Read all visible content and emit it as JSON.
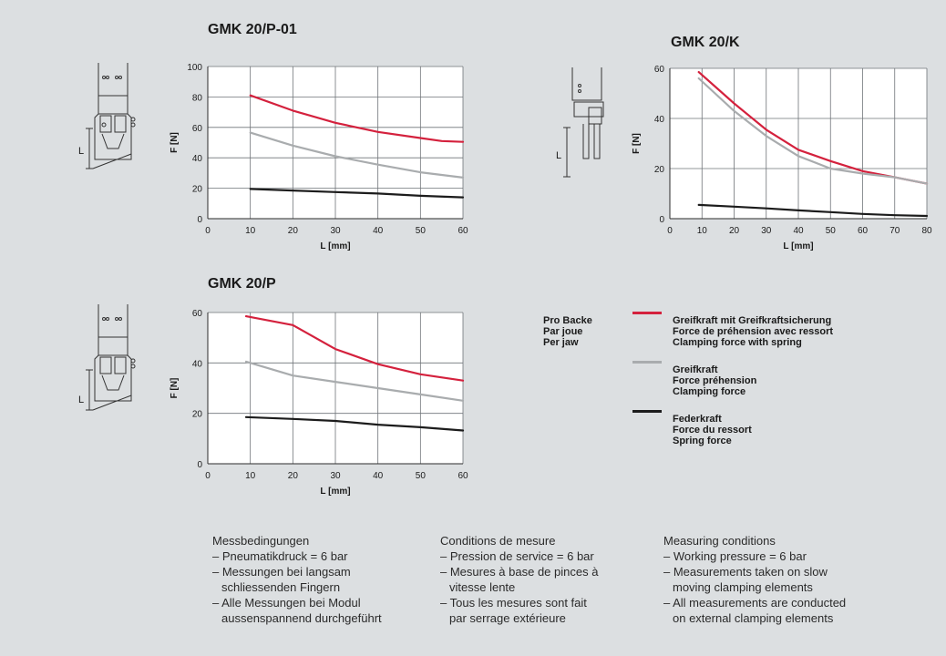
{
  "chart_data": [
    {
      "type": "line",
      "title": "GMK 20/P-01",
      "xlabel": "L [mm]",
      "ylabel": "F [N]",
      "xlim": [
        0,
        60
      ],
      "ylim": [
        0,
        100
      ],
      "xticks": [
        0,
        10,
        20,
        30,
        40,
        50,
        60
      ],
      "yticks": [
        0,
        20,
        40,
        60,
        80,
        100
      ],
      "grid": true,
      "series": [
        {
          "key": "red",
          "color": "#d4213d",
          "x": [
            10,
            20,
            30,
            40,
            50,
            55,
            60
          ],
          "values": [
            81,
            71,
            63,
            57,
            53,
            51,
            50.5
          ]
        },
        {
          "key": "gray",
          "color": "#a9acae",
          "x": [
            10,
            20,
            30,
            40,
            50,
            60
          ],
          "values": [
            56.5,
            48,
            41,
            35.5,
            30.5,
            27
          ]
        },
        {
          "key": "black",
          "color": "#1c1c1c",
          "x": [
            10,
            20,
            30,
            40,
            50,
            60
          ],
          "values": [
            19.5,
            18.5,
            17.5,
            16.5,
            15,
            14
          ]
        }
      ]
    },
    {
      "type": "line",
      "title": "GMK 20/K",
      "xlabel": "L [mm]",
      "ylabel": "F [N]",
      "xlim": [
        0,
        80
      ],
      "ylim": [
        0,
        60
      ],
      "xticks": [
        0,
        10,
        20,
        30,
        40,
        50,
        60,
        70,
        80
      ],
      "yticks": [
        0,
        20,
        40,
        60
      ],
      "grid": true,
      "series": [
        {
          "key": "red",
          "color": "#d4213d",
          "x": [
            9,
            20,
            30,
            40,
            50,
            60,
            70,
            80
          ],
          "values": [
            58.5,
            46,
            35.5,
            27.5,
            23,
            19,
            16.5,
            14
          ]
        },
        {
          "key": "gray",
          "color": "#a9acae",
          "x": [
            9,
            20,
            30,
            40,
            50,
            60,
            70,
            80
          ],
          "values": [
            56,
            43,
            33,
            25,
            20,
            18,
            16.5,
            14
          ]
        },
        {
          "key": "black",
          "color": "#1c1c1c",
          "x": [
            9,
            20,
            30,
            40,
            50,
            60,
            70,
            80
          ],
          "values": [
            5.5,
            4.8,
            4.1,
            3.3,
            2.6,
            1.9,
            1.4,
            1.1
          ]
        }
      ]
    },
    {
      "type": "line",
      "title": "GMK 20/P",
      "xlabel": "L [mm]",
      "ylabel": "F [N]",
      "xlim": [
        0,
        60
      ],
      "ylim": [
        0,
        60
      ],
      "xticks": [
        0,
        10,
        20,
        30,
        40,
        50,
        60
      ],
      "yticks": [
        0,
        20,
        40,
        60
      ],
      "grid": true,
      "series": [
        {
          "key": "red",
          "color": "#d4213d",
          "x": [
            9,
            20,
            30,
            40,
            50,
            60
          ],
          "values": [
            58.5,
            55,
            45.5,
            39.5,
            35.5,
            33
          ]
        },
        {
          "key": "gray",
          "color": "#a9acae",
          "x": [
            9,
            20,
            30,
            40,
            50,
            60
          ],
          "values": [
            40.5,
            35,
            32.5,
            30,
            27.5,
            25
          ]
        },
        {
          "key": "black",
          "color": "#1c1c1c",
          "x": [
            9,
            20,
            30,
            40,
            50,
            60
          ],
          "values": [
            18.5,
            17.8,
            17,
            15.5,
            14.5,
            13.2
          ]
        }
      ]
    }
  ],
  "legend": {
    "jaw_label": [
      "Pro Backe",
      "Par joue",
      "Per jaw"
    ],
    "entries": [
      {
        "color": "#d4213d",
        "lines": [
          "Greifkraft mit Greifkraftsicherung",
          "Force de préhension avec ressort",
          "Clamping force with spring"
        ]
      },
      {
        "color": "#a9acae",
        "lines": [
          "Greifkraft",
          "Force préhension",
          "Clamping force"
        ]
      },
      {
        "color": "#1c1c1c",
        "lines": [
          "Federkraft",
          "Force du ressort",
          "Spring force"
        ]
      }
    ]
  },
  "sketch_label": "L",
  "notes": [
    {
      "lines": [
        "Messbedingungen",
        "– Pneumatikdruck = 6 bar",
        "– Messungen bei langsam",
        "schliessenden Fingern",
        "– Alle Messungen bei Modul",
        "aussenspannend durchgeführt"
      ]
    },
    {
      "lines": [
        "Conditions de mesure",
        "– Pression de service = 6 bar",
        "– Mesures à base de pinces à",
        "vitesse lente",
        "– Tous les mesures sont fait",
        "par serrage extérieure"
      ]
    },
    {
      "lines": [
        "Measuring conditions",
        "– Working pressure = 6 bar",
        "– Measurements taken on slow",
        "moving clamping elements",
        "– All measurements are conducted",
        "on external clamping elements"
      ]
    }
  ]
}
